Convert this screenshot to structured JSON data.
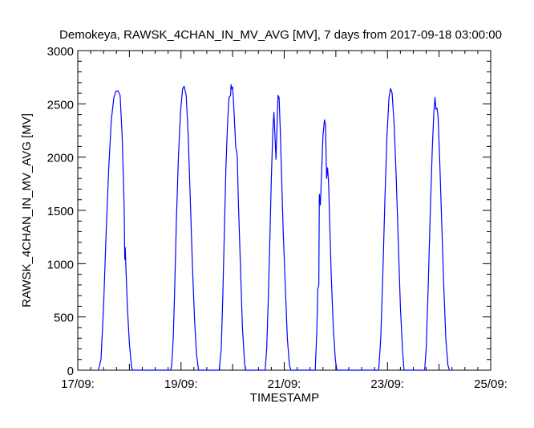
{
  "chart_data": {
    "type": "line",
    "title": "Demokeya, RAWSK_4CHAN_IN_MV_AVG [MV], 7 days from  2017-09-18 03:00:00",
    "xlabel": "TIMESTAMP",
    "ylabel": "RAWSK_4CHAN_IN_MV_AVG [MV]",
    "x_unit": "days",
    "xlim": [
      17,
      25
    ],
    "ylim": [
      0,
      3000
    ],
    "x_ticks": [
      {
        "x": 17,
        "label": "17/09:"
      },
      {
        "x": 19,
        "label": "19/09:"
      },
      {
        "x": 21,
        "label": "21/09:"
      },
      {
        "x": 23,
        "label": "23/09:"
      },
      {
        "x": 25,
        "label": "25/09:"
      }
    ],
    "y_ticks": [
      0,
      500,
      1000,
      1500,
      2000,
      2500,
      3000
    ],
    "grid": false,
    "series": [
      {
        "color": "#0000ff",
        "points": [
          [
            17.4,
            0
          ],
          [
            17.45,
            100
          ],
          [
            17.5,
            600
          ],
          [
            17.55,
            1300
          ],
          [
            17.6,
            1900
          ],
          [
            17.65,
            2350
          ],
          [
            17.7,
            2560
          ],
          [
            17.74,
            2620
          ],
          [
            17.78,
            2620
          ],
          [
            17.82,
            2580
          ],
          [
            17.86,
            2200
          ],
          [
            17.9,
            1500
          ],
          [
            17.91,
            1040
          ],
          [
            17.92,
            1150
          ],
          [
            17.93,
            1000
          ],
          [
            17.96,
            600
          ],
          [
            18.0,
            250
          ],
          [
            18.04,
            40
          ],
          [
            18.06,
            0
          ],
          [
            18.8,
            0
          ],
          [
            18.82,
            50
          ],
          [
            18.85,
            300
          ],
          [
            18.88,
            800
          ],
          [
            18.91,
            1400
          ],
          [
            18.95,
            2000
          ],
          [
            18.99,
            2420
          ],
          [
            19.03,
            2640
          ],
          [
            19.06,
            2665
          ],
          [
            19.1,
            2580
          ],
          [
            19.14,
            2200
          ],
          [
            19.18,
            1600
          ],
          [
            19.22,
            1000
          ],
          [
            19.26,
            500
          ],
          [
            19.3,
            150
          ],
          [
            19.34,
            0
          ],
          [
            19.74,
            0
          ],
          [
            19.78,
            200
          ],
          [
            19.81,
            700
          ],
          [
            19.84,
            1300
          ],
          [
            19.87,
            1900
          ],
          [
            19.9,
            2300
          ],
          [
            19.93,
            2560
          ],
          [
            19.96,
            2580
          ],
          [
            19.97,
            2680
          ],
          [
            19.98,
            2640
          ],
          [
            20.0,
            2660
          ],
          [
            20.02,
            2500
          ],
          [
            20.05,
            2200
          ],
          [
            20.06,
            2090
          ],
          [
            20.08,
            2050
          ],
          [
            20.09,
            2000
          ],
          [
            20.11,
            1600
          ],
          [
            20.15,
            1000
          ],
          [
            20.19,
            400
          ],
          [
            20.23,
            80
          ],
          [
            20.25,
            0
          ],
          [
            20.63,
            0
          ],
          [
            20.66,
            200
          ],
          [
            20.69,
            650
          ],
          [
            20.72,
            1200
          ],
          [
            20.75,
            1800
          ],
          [
            20.78,
            2260
          ],
          [
            20.8,
            2420
          ],
          [
            20.82,
            2200
          ],
          [
            20.84,
            1980
          ],
          [
            20.86,
            2300
          ],
          [
            20.88,
            2580
          ],
          [
            20.9,
            2560
          ],
          [
            20.92,
            2300
          ],
          [
            20.95,
            1800
          ],
          [
            20.98,
            1300
          ],
          [
            21.02,
            800
          ],
          [
            21.06,
            300
          ],
          [
            21.1,
            50
          ],
          [
            21.13,
            0
          ],
          [
            21.6,
            0
          ],
          [
            21.63,
            350
          ],
          [
            21.65,
            760
          ],
          [
            21.67,
            800
          ],
          [
            21.68,
            1650
          ],
          [
            21.7,
            1550
          ],
          [
            21.72,
            1800
          ],
          [
            21.75,
            2200
          ],
          [
            21.78,
            2350
          ],
          [
            21.8,
            2300
          ],
          [
            21.82,
            1800
          ],
          [
            21.84,
            1900
          ],
          [
            21.86,
            1750
          ],
          [
            21.88,
            1400
          ],
          [
            21.91,
            900
          ],
          [
            21.95,
            400
          ],
          [
            21.99,
            100
          ],
          [
            22.02,
            0
          ],
          [
            22.83,
            0
          ],
          [
            22.87,
            300
          ],
          [
            22.91,
            900
          ],
          [
            22.95,
            1600
          ],
          [
            22.99,
            2200
          ],
          [
            23.03,
            2560
          ],
          [
            23.06,
            2645
          ],
          [
            23.09,
            2600
          ],
          [
            23.13,
            2300
          ],
          [
            23.17,
            1800
          ],
          [
            23.21,
            1200
          ],
          [
            23.25,
            600
          ],
          [
            23.29,
            200
          ],
          [
            23.32,
            0
          ],
          [
            23.72,
            0
          ],
          [
            23.75,
            200
          ],
          [
            23.79,
            800
          ],
          [
            23.83,
            1500
          ],
          [
            23.87,
            2100
          ],
          [
            23.9,
            2430
          ],
          [
            23.92,
            2560
          ],
          [
            23.94,
            2450
          ],
          [
            23.96,
            2460
          ],
          [
            23.98,
            2380
          ],
          [
            24.01,
            2000
          ],
          [
            24.05,
            1400
          ],
          [
            24.09,
            800
          ],
          [
            24.13,
            300
          ],
          [
            24.17,
            50
          ],
          [
            24.2,
            0
          ]
        ]
      }
    ]
  }
}
